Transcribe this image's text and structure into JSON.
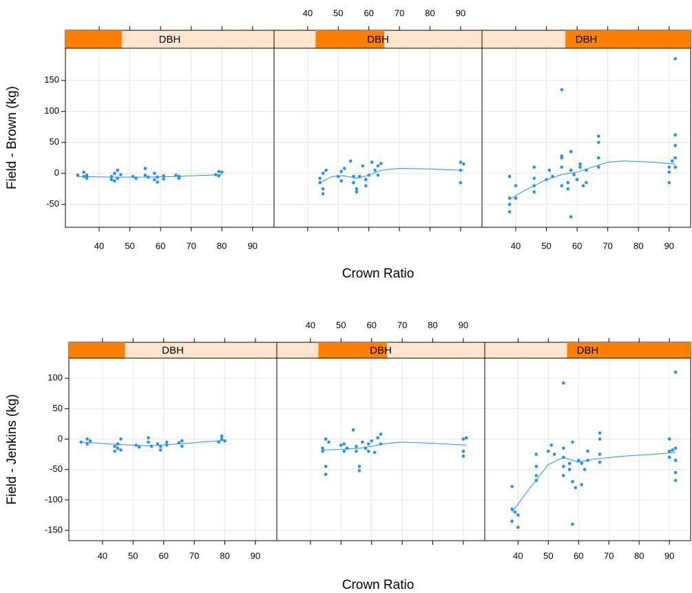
{
  "chart_data": [
    {
      "type": "scatter",
      "ylabel": "Field - Brown (kg)",
      "xlabel": "Crown Ratio",
      "strip_label": "DBH",
      "color": "#1e90ff",
      "xlim": [
        29,
        97
      ],
      "xticks": [
        40,
        50,
        60,
        70,
        80,
        90
      ],
      "ylim": [
        -87,
        202
      ],
      "yticks": [
        -50,
        0,
        50,
        100,
        150
      ],
      "grid": true,
      "panels": [
        {
          "x": [
            33,
            35,
            35,
            36,
            36,
            44,
            44,
            45,
            45,
            46,
            46,
            47,
            51,
            52,
            55,
            55,
            56,
            58,
            58,
            59,
            59,
            61,
            61,
            65,
            66,
            66,
            78,
            79,
            79,
            80
          ],
          "y": [
            -3,
            2,
            -5,
            -8,
            -3,
            -10,
            -5,
            0,
            -12,
            5,
            -8,
            -2,
            -5,
            -8,
            8,
            -3,
            -6,
            0,
            -10,
            -14,
            -6,
            -4,
            -9,
            -3,
            -8,
            -5,
            -2,
            3,
            -4,
            2
          ],
          "fit_x": [
            33,
            45,
            55,
            65,
            80
          ],
          "fit_y": [
            -5,
            -6,
            -6,
            -5,
            -2
          ]
        },
        {
          "x": [
            44,
            44,
            45,
            45,
            45,
            46,
            50,
            51,
            51,
            52,
            54,
            55,
            55,
            56,
            56,
            57,
            58,
            59,
            59,
            60,
            61,
            62,
            63,
            63,
            64,
            90,
            90,
            90,
            91
          ],
          "y": [
            -8,
            -15,
            -25,
            -33,
            0,
            5,
            -5,
            -12,
            3,
            8,
            20,
            -5,
            -15,
            -25,
            -30,
            -5,
            12,
            -10,
            -20,
            -3,
            18,
            5,
            -3,
            12,
            16,
            -15,
            5,
            18,
            15
          ],
          "fit_x": [
            44,
            48,
            52,
            56,
            60,
            64,
            70,
            80,
            91
          ],
          "fit_y": [
            -15,
            -5,
            -4,
            -8,
            -3,
            5,
            8,
            7,
            5
          ]
        },
        {
          "x": [
            38,
            38,
            38,
            38,
            40,
            40,
            46,
            46,
            46,
            46,
            50,
            51,
            52,
            55,
            55,
            55,
            55,
            55,
            57,
            57,
            58,
            58,
            58,
            59,
            60,
            61,
            61,
            62,
            63,
            63,
            67,
            67,
            67,
            67,
            90,
            90,
            90,
            91,
            92,
            92,
            92,
            92,
            92
          ],
          "y": [
            -40,
            -50,
            -62,
            -5,
            -40,
            -20,
            -20,
            -30,
            10,
            -8,
            -10,
            5,
            -5,
            135,
            25,
            28,
            10,
            -20,
            -15,
            -25,
            -70,
            35,
            5,
            -2,
            -10,
            10,
            15,
            -20,
            5,
            -15,
            60,
            50,
            25,
            10,
            10,
            2,
            -15,
            20,
            185,
            62,
            45,
            25,
            10
          ],
          "fit_x": [
            38,
            42,
            46,
            50,
            55,
            60,
            65,
            70,
            75,
            85,
            92
          ],
          "fit_y": [
            -42,
            -30,
            -20,
            -10,
            -2,
            2,
            10,
            18,
            20,
            18,
            15
          ]
        }
      ]
    },
    {
      "type": "scatter",
      "ylabel": "Field - Jenkins (kg)",
      "xlabel": "Crown Ratio",
      "strip_label": "DBH",
      "color": "#1e90ff",
      "xlim": [
        29,
        97
      ],
      "xticks": [
        40,
        50,
        60,
        70,
        80,
        90
      ],
      "ylim": [
        -167,
        133
      ],
      "yticks": [
        -150,
        -100,
        -50,
        0,
        50,
        100
      ],
      "grid": true,
      "panels": [
        {
          "x": [
            33,
            35,
            35,
            36,
            44,
            44,
            45,
            45,
            46,
            46,
            51,
            52,
            55,
            55,
            56,
            58,
            59,
            59,
            61,
            61,
            65,
            66,
            66,
            78,
            79,
            79,
            80
          ],
          "y": [
            -5,
            0,
            -8,
            -3,
            -12,
            -20,
            -8,
            -15,
            0,
            -18,
            -10,
            -13,
            -5,
            2,
            -12,
            -8,
            -18,
            -12,
            -5,
            -10,
            -6,
            -12,
            -3,
            -5,
            0,
            5,
            -3
          ],
          "fit_x": [
            33,
            45,
            55,
            65,
            80
          ],
          "fit_y": [
            -5,
            -9,
            -11,
            -8,
            -2
          ]
        },
        {
          "x": [
            44,
            44,
            45,
            45,
            45,
            46,
            50,
            51,
            51,
            52,
            54,
            55,
            55,
            56,
            56,
            57,
            58,
            59,
            59,
            60,
            61,
            62,
            63,
            63,
            90,
            90,
            90,
            91
          ],
          "y": [
            -15,
            -20,
            -45,
            -58,
            0,
            -5,
            -10,
            -20,
            -8,
            -15,
            15,
            -12,
            -20,
            -45,
            -52,
            -5,
            -15,
            -20,
            -8,
            -3,
            -22,
            2,
            8,
            -8,
            -20,
            -28,
            0,
            2
          ],
          "fit_x": [
            44,
            50,
            56,
            60,
            64,
            70,
            80,
            91
          ],
          "fit_y": [
            -18,
            -17,
            -15,
            -12,
            -8,
            -5,
            -7,
            -10
          ]
        },
        {
          "x": [
            38,
            38,
            38,
            39,
            40,
            40,
            46,
            46,
            46,
            46,
            50,
            51,
            52,
            55,
            55,
            55,
            55,
            55,
            57,
            57,
            58,
            58,
            58,
            59,
            60,
            61,
            61,
            62,
            63,
            63,
            67,
            67,
            67,
            67,
            90,
            90,
            90,
            91,
            92,
            92,
            92,
            92,
            92
          ],
          "y": [
            -78,
            -115,
            -135,
            -120,
            -125,
            -145,
            -25,
            -45,
            -60,
            -68,
            -20,
            -10,
            -25,
            92,
            -15,
            -30,
            -45,
            -60,
            -40,
            -50,
            -140,
            -5,
            -70,
            -80,
            -35,
            -40,
            -75,
            -50,
            -20,
            -35,
            10,
            0,
            -25,
            -38,
            0,
            -20,
            -30,
            -18,
            110,
            -15,
            -35,
            -55,
            -68
          ],
          "fit_x": [
            38,
            44,
            50,
            55,
            60,
            65,
            75,
            85,
            92
          ],
          "fit_y": [
            -120,
            -80,
            -42,
            -30,
            -38,
            -33,
            -28,
            -25,
            -22
          ]
        }
      ]
    }
  ]
}
